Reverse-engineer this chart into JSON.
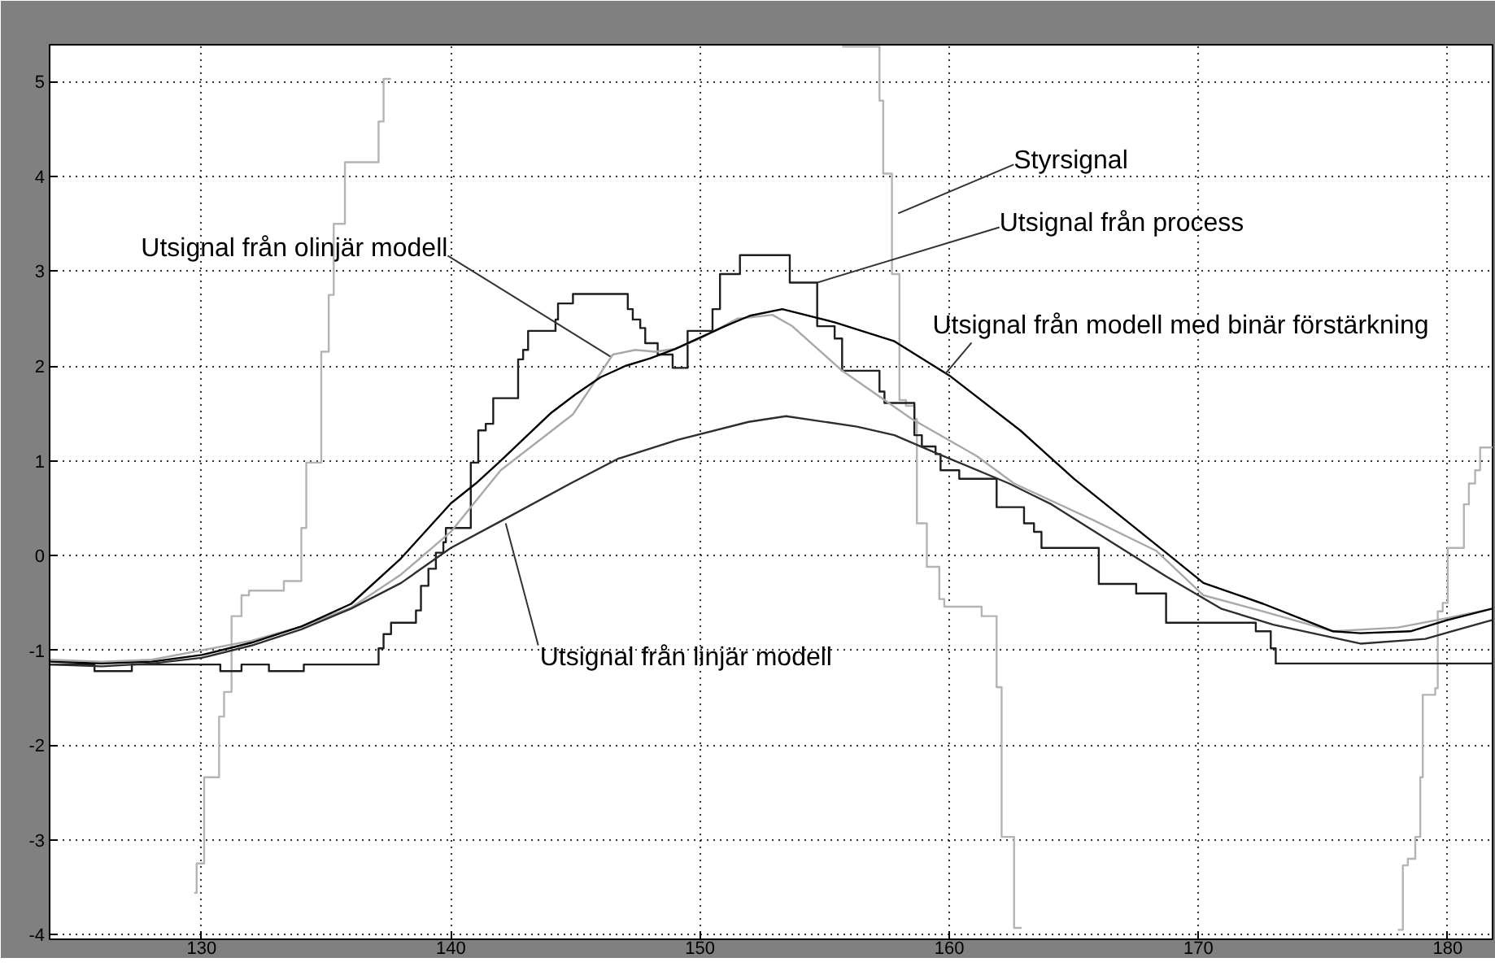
{
  "chart_data": {
    "type": "line",
    "xlim": [
      123.9,
      181.8
    ],
    "ylim": [
      -4.05,
      5.39
    ],
    "xticks": [
      130,
      140,
      150,
      160,
      170,
      180
    ],
    "yticks": [
      -4,
      -3,
      -2,
      -1,
      0,
      1,
      2,
      3,
      4,
      5
    ],
    "grid": true,
    "line_style": "solid",
    "marker": "none",
    "series": [
      {
        "type": "step",
        "color": "#b4b4b4",
        "x": [
          129.7,
          129.8,
          130.1,
          130.7,
          130.9,
          131.2,
          131.6,
          131.9,
          133.3,
          134.0,
          134.2,
          134.8,
          135.1,
          135.3,
          135.75,
          137.1,
          137.3,
          137.6,
          155.7,
          157.2,
          157.35,
          157.7,
          158.0,
          158.26,
          158.6,
          158.7,
          159.1,
          159.6,
          159.8,
          161.3,
          161.9,
          162.1,
          162.6,
          162.9,
          178.0,
          178.2,
          178.4,
          178.7,
          178.9,
          179.0,
          179.5,
          179.6,
          179.8,
          180.0,
          180.65,
          180.85,
          181.1,
          181.3,
          181.8
        ],
        "values": [
          -3.56,
          -3.25,
          -2.34,
          -1.7,
          -1.44,
          -0.64,
          -0.42,
          -0.37,
          -0.27,
          0.29,
          0.98,
          2.15,
          2.75,
          3.5,
          4.15,
          4.58,
          5.03,
          null,
          5.37,
          4.8,
          4.03,
          2.97,
          1.64,
          1.58,
          1.44,
          0.34,
          -0.12,
          -0.46,
          -0.54,
          -0.64,
          -1.39,
          -2.97,
          -3.93,
          null,
          -3.95,
          -3.27,
          -3.2,
          -2.97,
          -2.34,
          -1.47,
          -1.4,
          -0.59,
          -0.5,
          0.08,
          0.54,
          0.76,
          0.9,
          1.14,
          1.14
        ]
      },
      {
        "type": "step",
        "color": "#1e1e1e",
        "x": [
          123.9,
          125.7,
          127.2,
          130.75,
          131.6,
          132.7,
          134.1,
          137.1,
          137.3,
          137.6,
          138.6,
          138.8,
          139.1,
          139.4,
          139.7,
          139.8,
          140.8,
          141.1,
          141.4,
          141.7,
          142.7,
          142.9,
          143.1,
          144.2,
          144.3,
          144.9,
          147.1,
          147.3,
          147.6,
          147.8,
          148.3,
          148.9,
          149.5,
          150.5,
          150.8,
          151.6,
          153.6,
          154.7,
          155.4,
          155.7,
          157.2,
          157.4,
          158.6,
          158.9,
          159.45,
          159.65,
          160.4,
          161.9,
          163.0,
          163.4,
          163.7,
          166.0,
          167.5,
          168.7,
          172.3,
          172.9,
          173.1,
          181.8
        ],
        "values": [
          -1.15,
          -1.22,
          -1.15,
          -1.22,
          -1.15,
          -1.22,
          -1.15,
          -0.98,
          -0.83,
          -0.71,
          -0.58,
          -0.32,
          -0.14,
          0.03,
          0.14,
          0.29,
          0.98,
          1.32,
          1.39,
          1.66,
          2.07,
          2.17,
          2.37,
          2.49,
          2.66,
          2.76,
          2.6,
          2.49,
          2.4,
          2.24,
          2.12,
          1.98,
          2.37,
          2.6,
          2.97,
          3.17,
          2.88,
          2.42,
          2.29,
          1.95,
          1.73,
          1.61,
          1.27,
          1.15,
          1.07,
          0.9,
          0.81,
          0.51,
          0.34,
          0.25,
          0.08,
          -0.3,
          -0.4,
          -0.71,
          -0.8,
          -0.98,
          -1.14,
          -1.14
        ]
      },
      {
        "color": "#a8a8a8",
        "x": [
          123.9,
          126,
          128,
          130,
          132,
          134,
          136,
          138,
          140,
          142,
          144.9,
          146.5,
          147.4,
          148.2,
          149,
          150,
          151.5,
          151.95,
          152.9,
          153.7,
          155.7,
          158.5,
          161.1,
          162.6,
          165.8,
          168.3,
          170.2,
          172.6,
          175.4,
          178.0,
          180.0,
          181.8
        ],
        "values": [
          -1.1,
          -1.12,
          -1.1,
          -1.0,
          -0.9,
          -0.75,
          -0.55,
          -0.2,
          0.25,
          0.9,
          1.49,
          2.12,
          2.17,
          2.15,
          2.18,
          2.29,
          2.5,
          2.51,
          2.54,
          2.42,
          1.95,
          1.44,
          1.05,
          0.76,
          0.37,
          0.05,
          -0.42,
          -0.59,
          -0.8,
          -0.76,
          -0.66,
          -0.56
        ]
      },
      {
        "color": "#000000",
        "x": [
          123.9,
          126,
          128,
          130,
          132,
          134,
          136,
          138,
          140,
          141,
          142,
          143,
          144,
          145,
          146,
          147,
          148,
          149,
          150,
          151,
          152,
          153.3,
          155.4,
          157.8,
          160.0,
          162.85,
          165.0,
          168.7,
          170.2,
          172.6,
          175.4,
          176.5,
          178.5,
          180.0,
          181.8
        ],
        "values": [
          -1.12,
          -1.14,
          -1.12,
          -1.05,
          -0.92,
          -0.75,
          -0.51,
          -0.03,
          0.55,
          0.76,
          1.0,
          1.25,
          1.5,
          1.7,
          1.88,
          2.0,
          2.08,
          2.18,
          2.3,
          2.42,
          2.53,
          2.6,
          2.46,
          2.26,
          1.9,
          1.32,
          0.81,
          0.03,
          -0.29,
          -0.51,
          -0.8,
          -0.82,
          -0.8,
          -0.68,
          -0.56
        ]
      },
      {
        "color": "#2e2e2e",
        "x": [
          123.9,
          126,
          128,
          130,
          132,
          134,
          136,
          138,
          140,
          142.2,
          144.8,
          146.7,
          149.1,
          151.95,
          153.45,
          156.3,
          157.8,
          159.3,
          162.4,
          164.1,
          168.7,
          170.9,
          173.0,
          176.5,
          179.1,
          181.8
        ],
        "values": [
          -1.15,
          -1.17,
          -1.14,
          -1.08,
          -0.95,
          -0.78,
          -0.56,
          -0.29,
          0.08,
          0.39,
          0.76,
          1.02,
          1.22,
          1.41,
          1.47,
          1.36,
          1.27,
          1.1,
          0.76,
          0.54,
          -0.22,
          -0.56,
          -0.73,
          -0.93,
          -0.88,
          -0.68
        ]
      }
    ],
    "annotations": [
      {
        "text": "Utsignal från olinjär modell",
        "x": 146.4,
        "y": 2.1
      },
      {
        "text": "Styrsignal",
        "x": 157.95,
        "y": 3.61
      },
      {
        "text": "Utsignal från process",
        "x": 154.7,
        "y": 2.88
      },
      {
        "text": "Utsignal från modell med binär förstärkning",
        "x": 159.85,
        "y": 1.92
      },
      {
        "text": "Utsignal från linjär modell",
        "x": 142.2,
        "y": 0.34
      }
    ]
  }
}
